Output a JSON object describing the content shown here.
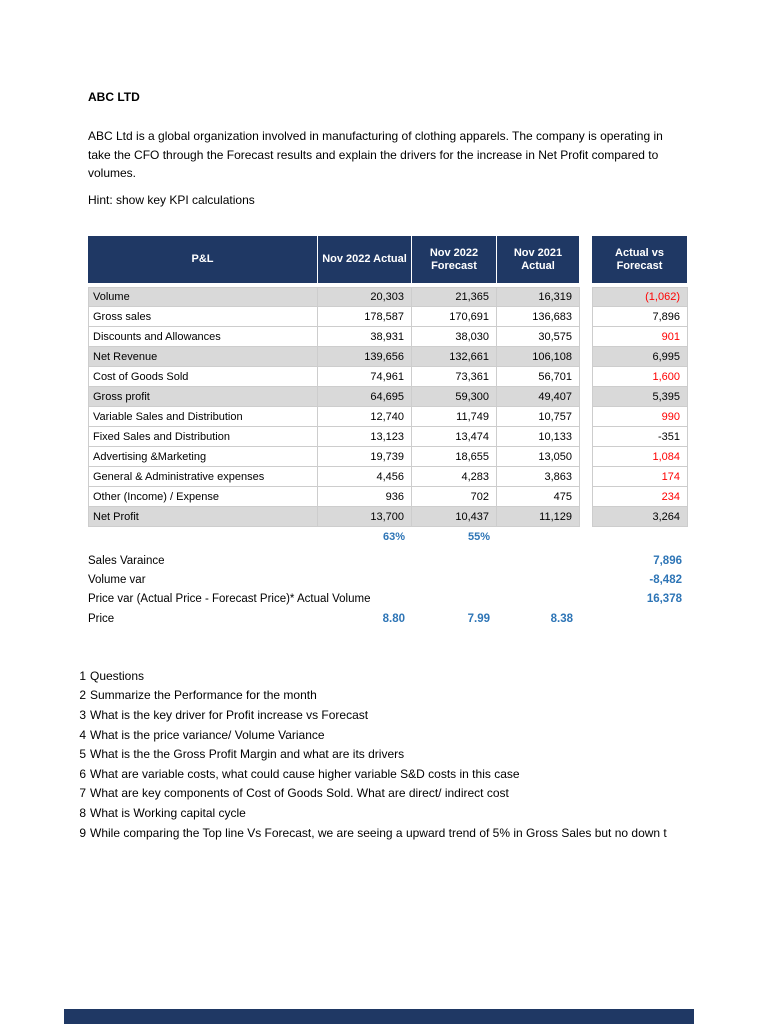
{
  "document": {
    "title": "ABC LTD",
    "intro_lines": [
      "ABC Ltd is a global organization involved in manufacturing of clothing apparels. The company is operating in",
      "take the CFO through the Forecast results and explain the drivers for the increase in Net Profit compared to",
      "volumes."
    ],
    "hint": "Hint: show  key KPI  calculations"
  },
  "table": {
    "headers": {
      "pnl": "P&L",
      "actual": "Nov 2022 Actual",
      "forecast": "Nov 2022 Forecast",
      "prior": "Nov 2021 Actual",
      "variance": "Actual  vs Forecast"
    },
    "rows": [
      {
        "label": "Volume",
        "actual": "20,303",
        "forecast": "21,365",
        "prior": "16,319",
        "variance": "(1,062)"
      },
      {
        "label": "Gross sales",
        "actual": "178,587",
        "forecast": "170,691",
        "prior": "136,683",
        "variance": "7,896"
      },
      {
        "label": "Discounts and Allowances",
        "actual": "38,931",
        "forecast": "38,030",
        "prior": "30,575",
        "variance": "901"
      },
      {
        "label": "Net Revenue",
        "actual": "139,656",
        "forecast": "132,661",
        "prior": "106,108",
        "variance": "6,995"
      },
      {
        "label": "Cost of Goods Sold",
        "actual": "74,961",
        "forecast": "73,361",
        "prior": "56,701",
        "variance": "1,600"
      },
      {
        "label": "Gross profit",
        "actual": "64,695",
        "forecast": "59,300",
        "prior": "49,407",
        "variance": "5,395"
      },
      {
        "label": "Variable Sales and Distribution",
        "actual": "12,740",
        "forecast": "11,749",
        "prior": "10,757",
        "variance": "990"
      },
      {
        "label": "Fixed Sales and Distribution",
        "actual": "13,123",
        "forecast": "13,474",
        "prior": "10,133",
        "variance": "-351"
      },
      {
        "label": "Advertising &Marketing",
        "actual": "19,739",
        "forecast": "18,655",
        "prior": "13,050",
        "variance": "1,084"
      },
      {
        "label": "General & Administrative expenses",
        "actual": "4,456",
        "forecast": "4,283",
        "prior": "3,863",
        "variance": "174"
      },
      {
        "label": "Other (Income) / Expense",
        "actual": "936",
        "forecast": "702",
        "prior": "475",
        "variance": "234"
      },
      {
        "label": "Net Profit",
        "actual": "13,700",
        "forecast": "10,437",
        "prior": "11,129",
        "variance": "3,264"
      }
    ],
    "margin_row": {
      "actual": "63%",
      "forecast": "55%"
    }
  },
  "kpis": {
    "rows": [
      {
        "label": "Sales Varaince",
        "value": "7,896"
      },
      {
        "label": "Volume var",
        "value": "-8,482"
      },
      {
        "label": "Price var (Actual Price - Forecast Price)* Actual Volume",
        "value": "16,378"
      }
    ],
    "price": {
      "label": "Price",
      "actual": "8.80",
      "forecast": "7.99",
      "prior": "8.38"
    }
  },
  "questions": [
    {
      "num": "1",
      "text": "Questions"
    },
    {
      "num": "2",
      "text": "Summarize the Performance for the month"
    },
    {
      "num": "3",
      "text": "What is the key driver for Profit increase vs Forecast"
    },
    {
      "num": "4",
      "text": "What is the price variance/ Volume Variance"
    },
    {
      "num": "5",
      "text": "What is the the Gross Profit Margin and what are its drivers"
    },
    {
      "num": "6",
      "text": "What are variable costs, what could cause higher variable S&D costs in this case"
    },
    {
      "num": "7",
      "text": "What are key  components of Cost of Goods Sold. What are direct/ indirect cost"
    },
    {
      "num": "8",
      "text": "What is Working capital cycle"
    },
    {
      "num": "9",
      "text": "While comparing the Top line Vs Forecast, we are seeing a upward trend of 5% in Gross Sales but no down t"
    }
  ],
  "colors": {
    "header_navy": "#1F3864",
    "shaded_row": "#D9D9D9",
    "negative_red": "#FF0000",
    "kpi_blue": "#2E75B6"
  }
}
